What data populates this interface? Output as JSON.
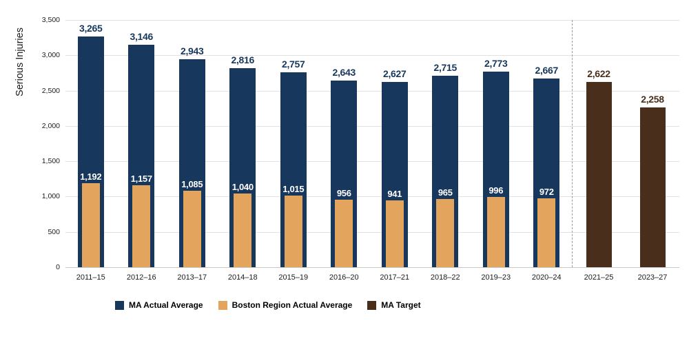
{
  "chart_data": {
    "type": "bar",
    "title": "",
    "ylabel": "Serious Injuries",
    "xlabel": "",
    "ylim": [
      0,
      3500
    ],
    "grid": true,
    "legend_position": "bottom",
    "yticks": [
      {
        "value": 0,
        "label": "0"
      },
      {
        "value": 500,
        "label": "500"
      },
      {
        "value": 1000,
        "label": "1,000"
      },
      {
        "value": 1500,
        "label": "1,500"
      },
      {
        "value": 2000,
        "label": "2,000"
      },
      {
        "value": 2500,
        "label": "2,500"
      },
      {
        "value": 3000,
        "label": "3,000"
      },
      {
        "value": 3500,
        "label": "3,500"
      }
    ],
    "categories": [
      "2011–15",
      "2012–16",
      "2013–17",
      "2014–18",
      "2015–19",
      "2016–20",
      "2017–21",
      "2018–22",
      "2019–23",
      "2020–24"
    ],
    "series": [
      {
        "name": "MA Actual Average",
        "color": "#17375c",
        "values": [
          3265,
          3146,
          2943,
          2816,
          2757,
          2643,
          2627,
          2715,
          2773,
          2667
        ],
        "labels": [
          "3,265",
          "3,146",
          "2,943",
          "2,816",
          "2,757",
          "2,643",
          "2,627",
          "2,715",
          "2,773",
          "2,667"
        ]
      },
      {
        "name": "Boston Region Actual Average",
        "color": "#e3a45e",
        "values": [
          1192,
          1157,
          1085,
          1040,
          1015,
          956,
          941,
          965,
          996,
          972
        ],
        "labels": [
          "1,192",
          "1,157",
          "1,085",
          "1,040",
          "1,015",
          "956",
          "941",
          "965",
          "996",
          "972"
        ]
      }
    ],
    "target_series": {
      "name": "MA Target",
      "color": "#4a2e1c",
      "categories": [
        "2021–25",
        "2023–27"
      ],
      "values": [
        2622,
        2258
      ],
      "labels": [
        "2,622",
        "2,258"
      ]
    },
    "separator": {
      "style": "dashed",
      "between": [
        "2020–24",
        "2021–25"
      ]
    },
    "legend": [
      {
        "label": "MA Actual Average",
        "color": "#17375c"
      },
      {
        "label": "Boston Region Actual Average",
        "color": "#e3a45e"
      },
      {
        "label": "MA Target",
        "color": "#4a2e1c"
      }
    ]
  }
}
